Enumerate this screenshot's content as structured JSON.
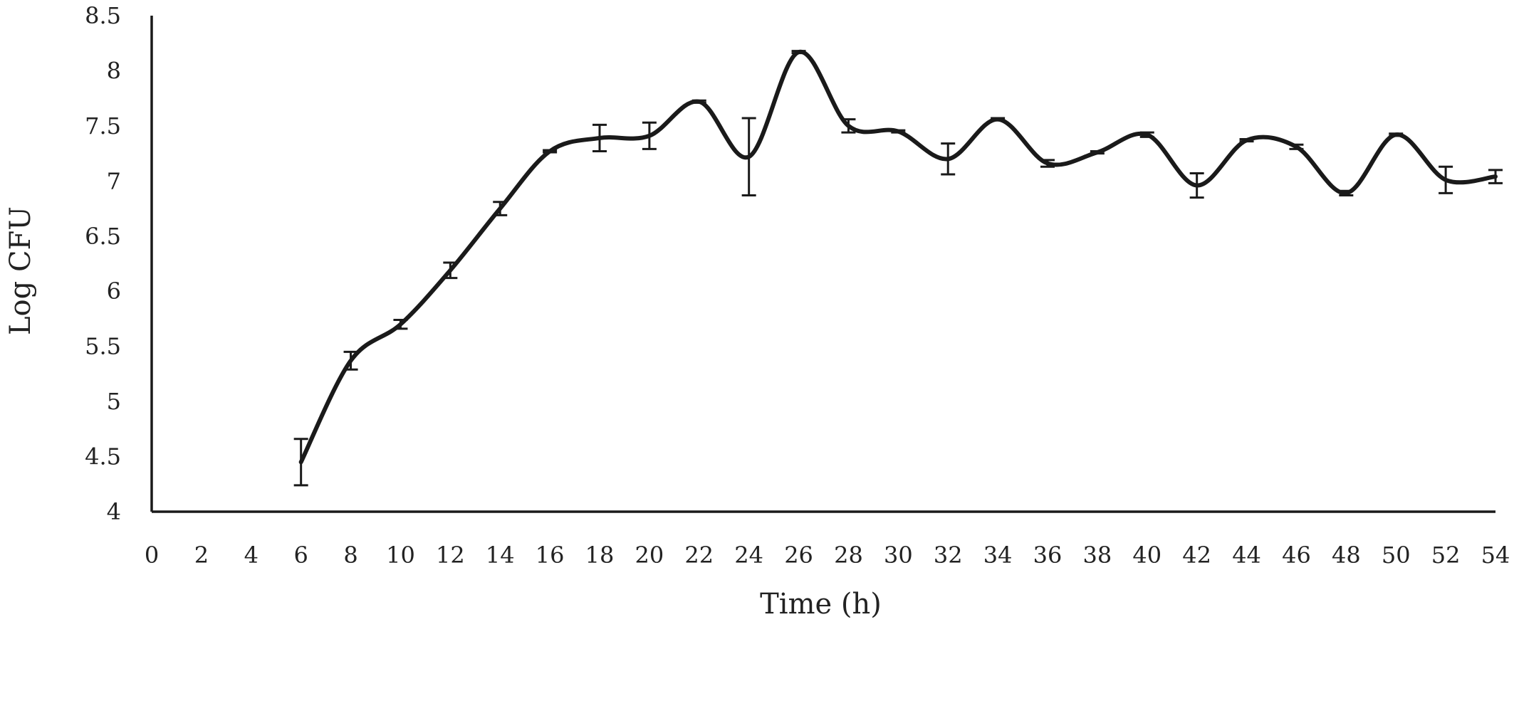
{
  "chart_data": {
    "type": "line",
    "title": "",
    "xlabel": "Time (h)",
    "ylabel": "Log CFU",
    "xlim": [
      0,
      54
    ],
    "ylim": [
      4,
      8.5
    ],
    "x_ticks": [
      "0",
      "2",
      "4",
      "6",
      "8",
      "10",
      "12",
      "14",
      "16",
      "18",
      "20",
      "22",
      "24",
      "26",
      "28",
      "30",
      "32",
      "34",
      "36",
      "38",
      "40",
      "42",
      "44",
      "46",
      "48",
      "50",
      "52",
      "54"
    ],
    "y_ticks": [
      "4",
      "4.5",
      "5",
      "5.5",
      "6",
      "6.5",
      "7",
      "7.5",
      "8",
      "8.5"
    ],
    "smooth": true,
    "grid": false,
    "legend": "none",
    "line_color": "#1a1a1a",
    "series": [
      {
        "x": [
          6,
          8,
          10,
          12,
          14,
          16,
          18,
          20,
          22,
          24,
          26,
          28,
          30,
          32,
          34,
          36,
          38,
          40,
          42,
          44,
          46,
          48,
          50,
          52,
          54
        ],
        "values": [
          4.45,
          5.37,
          5.7,
          6.19,
          6.75,
          7.27,
          7.39,
          7.41,
          7.72,
          7.22,
          8.17,
          7.5,
          7.45,
          7.2,
          7.56,
          7.16,
          7.26,
          7.42,
          6.96,
          7.37,
          7.31,
          6.89,
          7.42,
          7.01,
          7.04
        ],
        "error": [
          0.21,
          0.08,
          0.04,
          0.07,
          0.06,
          0.01,
          0.12,
          0.12,
          0.01,
          0.35,
          0.01,
          0.06,
          0.01,
          0.14,
          0.01,
          0.03,
          0.01,
          0.02,
          0.11,
          0.01,
          0.02,
          0.02,
          0.01,
          0.12,
          0.06
        ]
      }
    ]
  }
}
